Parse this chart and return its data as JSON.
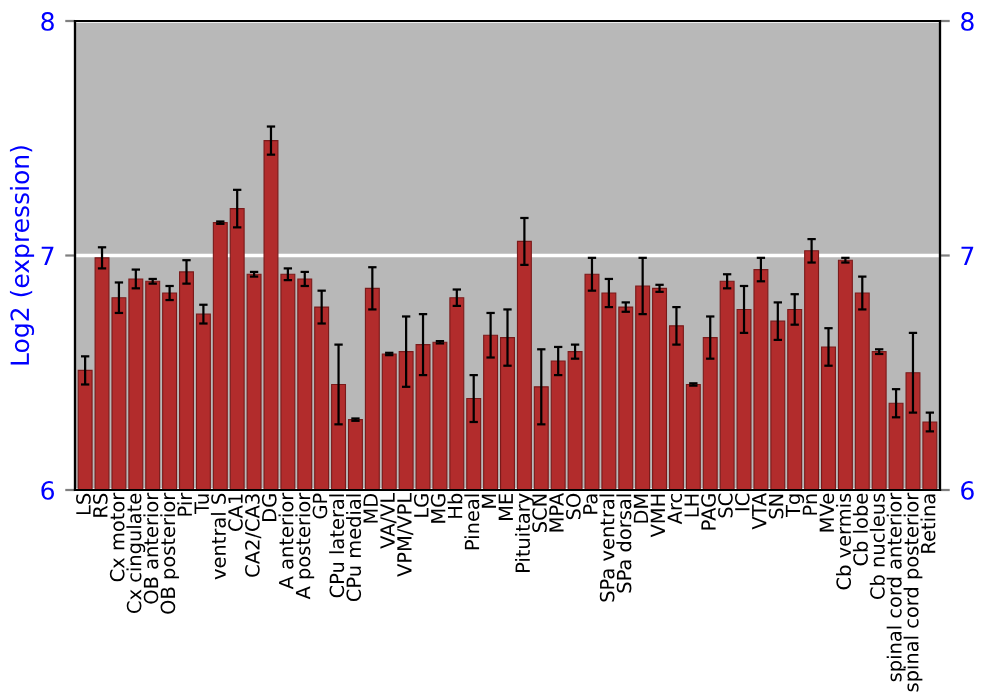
{
  "chart_data": {
    "type": "bar",
    "ylabel": "Log2 (expression)",
    "categories": [
      "LS",
      "RS",
      "Cx motor",
      "Cx cingulate",
      "OB anterior",
      "OB posterior",
      "Pir",
      "Tu",
      "ventral S",
      "CA1",
      "CA2/CA3",
      "DG",
      "A anterior",
      "A posterior",
      "GP",
      "CPu lateral",
      "CPu medial",
      "MD",
      "VA/VL",
      "VPM/VPL",
      "LG",
      "MG",
      "Hb",
      "Pineal",
      "M",
      "ME",
      "Pituitary",
      "SCN",
      "MPA",
      "SO",
      "Pa",
      "SPa ventral",
      "SPa dorsal",
      "DM",
      "VMH",
      "Arc",
      "LH",
      "PAG",
      "SC",
      "IC",
      "VTA",
      "SN",
      "Tg",
      "Pn",
      "MVe",
      "Cb vermis",
      "Cb lobe",
      "Cb nucleus",
      "spinal cord anterior",
      "spinal cord posterior",
      "Retina"
    ],
    "values": [
      6.51,
      6.99,
      6.82,
      6.9,
      6.89,
      6.84,
      6.93,
      6.75,
      7.14,
      7.2,
      6.92,
      7.49,
      6.92,
      6.9,
      6.78,
      6.45,
      6.3,
      6.86,
      6.58,
      6.59,
      6.62,
      6.63,
      6.82,
      6.39,
      6.66,
      6.65,
      7.06,
      6.44,
      6.55,
      6.59,
      6.92,
      6.84,
      6.78,
      6.87,
      6.86,
      6.7,
      6.45,
      6.65,
      6.89,
      6.77,
      6.94,
      6.72,
      6.77,
      7.02,
      6.61,
      6.98,
      6.84,
      6.59,
      6.37,
      6.5,
      6.29
    ],
    "errors": [
      0.06,
      0.045,
      0.065,
      0.04,
      0.01,
      0.03,
      0.05,
      0.04,
      0.005,
      0.08,
      0.01,
      0.06,
      0.025,
      0.03,
      0.07,
      0.17,
      0.005,
      0.09,
      0.005,
      0.15,
      0.13,
      0.005,
      0.035,
      0.1,
      0.095,
      0.12,
      0.1,
      0.16,
      0.06,
      0.03,
      0.07,
      0.06,
      0.02,
      0.12,
      0.015,
      0.08,
      0.005,
      0.09,
      0.03,
      0.1,
      0.05,
      0.08,
      0.065,
      0.05,
      0.08,
      0.01,
      0.07,
      0.01,
      0.06,
      0.17,
      0.04
    ],
    "color": "#b22c2c",
    "ylim": [
      6,
      8
    ],
    "yticks": [
      6,
      7,
      8
    ],
    "y2lim": [
      6,
      8
    ],
    "y2ticks": [
      6,
      7,
      8
    ],
    "grid": "y"
  }
}
